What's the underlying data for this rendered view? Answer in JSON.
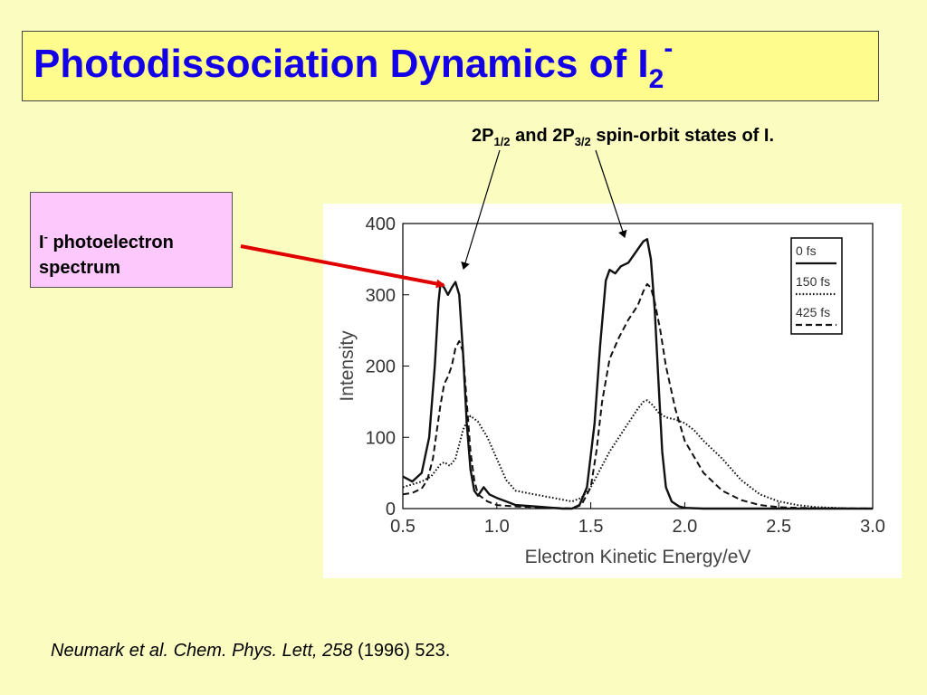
{
  "slide": {
    "title": {
      "main": "Photodissociation Dynamics of I",
      "subscript": "2",
      "superscript": "-"
    },
    "states_label": {
      "part1": "2P",
      "sub1": "1/2",
      "part2": " and 2P",
      "sub2": "3/2",
      "part3": " spin-orbit states of I."
    },
    "spectrum_label": {
      "line1_main": "I",
      "line1_sup": "-",
      "line1_rest": " photoelectron",
      "line2": "spectrum"
    },
    "citation": {
      "italic": "Neumark et al. Chem. Phys. Lett, 258",
      "normal": " (1996) 523."
    },
    "colors": {
      "title": "#1400e6",
      "arrow": "#e00000",
      "title_box": "#fffc8e",
      "spectrum_box": "#fdc8fb",
      "background": "#fbfcc0"
    }
  },
  "chart_data": {
    "type": "line",
    "title": "",
    "xlabel": "Electron Kinetic Energy/eV",
    "ylabel": "Intensity",
    "xlim": [
      0.5,
      3.0
    ],
    "ylim": [
      0,
      400
    ],
    "xticks": [
      0.5,
      1.0,
      1.5,
      2.0,
      2.5,
      3.0
    ],
    "xtick_labels": [
      "0.5",
      "1.0",
      "1.5",
      "2.0",
      "2.5",
      "3.0"
    ],
    "yticks": [
      0,
      100,
      200,
      300,
      400
    ],
    "ytick_labels": [
      "0",
      "100",
      "200",
      "300",
      "400"
    ],
    "grid": false,
    "legend_position": "top-right",
    "series": [
      {
        "name": "0 fs",
        "style": "solid",
        "x": [
          0.5,
          0.55,
          0.6,
          0.64,
          0.67,
          0.69,
          0.7,
          0.72,
          0.74,
          0.76,
          0.78,
          0.8,
          0.82,
          0.84,
          0.86,
          0.88,
          0.9,
          0.93,
          0.96,
          1.0,
          1.05,
          1.1,
          1.2,
          1.3,
          1.35,
          1.4,
          1.44,
          1.48,
          1.52,
          1.55,
          1.58,
          1.6,
          1.63,
          1.66,
          1.7,
          1.74,
          1.78,
          1.8,
          1.82,
          1.84,
          1.86,
          1.88,
          1.9,
          1.93,
          1.97,
          2.0,
          2.1,
          2.2,
          2.4,
          2.6,
          3.0
        ],
        "y": [
          45,
          38,
          50,
          100,
          200,
          290,
          315,
          310,
          300,
          310,
          318,
          300,
          220,
          120,
          55,
          25,
          18,
          30,
          20,
          15,
          10,
          5,
          3,
          1,
          0,
          0,
          5,
          30,
          120,
          230,
          320,
          335,
          330,
          340,
          345,
          360,
          375,
          378,
          350,
          280,
          180,
          80,
          30,
          10,
          3,
          1,
          0,
          0,
          0,
          0,
          0
        ]
      },
      {
        "name": "150 fs",
        "style": "dotted",
        "x": [
          0.5,
          0.6,
          0.65,
          0.7,
          0.72,
          0.75,
          0.78,
          0.8,
          0.82,
          0.84,
          0.86,
          0.9,
          0.95,
          1.0,
          1.05,
          1.1,
          1.2,
          1.3,
          1.4,
          1.45,
          1.5,
          1.55,
          1.6,
          1.65,
          1.7,
          1.75,
          1.78,
          1.8,
          1.83,
          1.86,
          1.9,
          1.95,
          2.0,
          2.05,
          2.1,
          2.2,
          2.3,
          2.4,
          2.5,
          2.6,
          2.7,
          2.8,
          2.9,
          3.0
        ],
        "y": [
          30,
          38,
          45,
          62,
          65,
          60,
          70,
          90,
          110,
          122,
          130,
          122,
          100,
          70,
          40,
          25,
          20,
          15,
          10,
          15,
          30,
          55,
          80,
          100,
          120,
          140,
          150,
          152,
          145,
          135,
          128,
          125,
          120,
          110,
          95,
          70,
          40,
          20,
          10,
          5,
          2,
          1,
          0,
          0
        ]
      },
      {
        "name": "425 fs",
        "style": "dashed",
        "x": [
          0.5,
          0.55,
          0.6,
          0.63,
          0.66,
          0.7,
          0.72,
          0.74,
          0.76,
          0.78,
          0.8,
          0.82,
          0.84,
          0.86,
          0.88,
          0.9,
          0.95,
          1.0,
          1.1,
          1.2,
          1.3,
          1.4,
          1.45,
          1.5,
          1.53,
          1.56,
          1.6,
          1.65,
          1.7,
          1.75,
          1.78,
          1.8,
          1.82,
          1.84,
          1.87,
          1.9,
          1.95,
          2.0,
          2.1,
          2.2,
          2.3,
          2.4,
          2.5,
          2.6,
          3.0
        ],
        "y": [
          20,
          22,
          28,
          40,
          70,
          145,
          175,
          185,
          200,
          225,
          235,
          220,
          150,
          80,
          40,
          20,
          10,
          5,
          3,
          2,
          1,
          0,
          5,
          30,
          80,
          150,
          210,
          240,
          265,
          285,
          305,
          315,
          310,
          290,
          250,
          200,
          140,
          95,
          50,
          25,
          12,
          5,
          2,
          1,
          0
        ]
      }
    ],
    "legend_entries": [
      "0 fs",
      "150 fs",
      "425 fs"
    ]
  }
}
